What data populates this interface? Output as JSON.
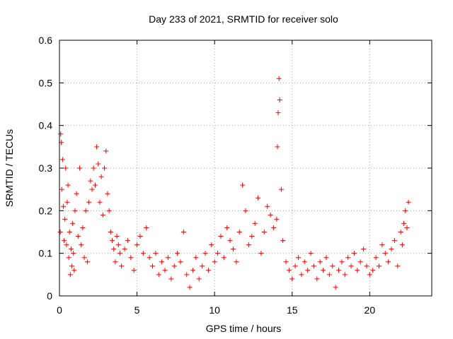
{
  "chart_data": {
    "type": "scatter",
    "title": "Day 233 of 2021, SRMTID for receiver solo",
    "xlabel": "GPS time / hours",
    "ylabel": "SRMTID / TECUs",
    "xlim": [
      0,
      24
    ],
    "ylim": [
      0,
      0.6
    ],
    "xticks": [
      0,
      5,
      10,
      15,
      20
    ],
    "yticks": [
      0,
      0.1,
      0.2,
      0.3,
      0.4,
      0.5,
      0.6
    ],
    "xtick_labels": [
      "0",
      "5",
      "10",
      "15",
      "20"
    ],
    "ytick_labels": [
      "0",
      "0.1",
      "0.2",
      "0.3",
      "0.4",
      "0.5",
      "0.6"
    ],
    "grid": true,
    "marker": "+",
    "color": "#ff0000",
    "series": [
      {
        "name": "SRMTID",
        "points": [
          [
            0.05,
            0.15
          ],
          [
            0.08,
            0.38
          ],
          [
            0.12,
            0.36
          ],
          [
            0.15,
            0.25
          ],
          [
            0.2,
            0.32
          ],
          [
            0.25,
            0.21
          ],
          [
            0.3,
            0.13
          ],
          [
            0.35,
            0.18
          ],
          [
            0.4,
            0.3
          ],
          [
            0.45,
            0.12
          ],
          [
            0.5,
            0.22
          ],
          [
            0.55,
            0.26
          ],
          [
            0.6,
            0.09
          ],
          [
            0.65,
            0.15
          ],
          [
            0.7,
            0.05
          ],
          [
            0.75,
            0.11
          ],
          [
            0.8,
            0.07
          ],
          [
            0.85,
            0.17
          ],
          [
            0.9,
            0.1
          ],
          [
            0.95,
            0.06
          ],
          [
            1.0,
            0.2
          ],
          [
            1.1,
            0.24
          ],
          [
            1.2,
            0.14
          ],
          [
            1.3,
            0.3
          ],
          [
            1.4,
            0.12
          ],
          [
            1.5,
            0.16
          ],
          [
            1.6,
            0.09
          ],
          [
            1.7,
            0.2
          ],
          [
            1.8,
            0.08
          ],
          [
            1.9,
            0.22
          ],
          [
            2.0,
            0.27
          ],
          [
            2.1,
            0.25
          ],
          [
            2.2,
            0.3
          ],
          [
            2.3,
            0.26
          ],
          [
            2.4,
            0.35
          ],
          [
            2.5,
            0.31
          ],
          [
            2.6,
            0.22
          ],
          [
            2.7,
            0.28
          ],
          [
            2.8,
            0.19
          ],
          [
            2.9,
            0.3
          ],
          [
            3.0,
            0.34
          ],
          [
            3.1,
            0.24
          ],
          [
            3.2,
            0.2
          ],
          [
            3.3,
            0.15
          ],
          [
            3.4,
            0.13
          ],
          [
            3.5,
            0.11
          ],
          [
            3.6,
            0.08
          ],
          [
            3.7,
            0.14
          ],
          [
            3.8,
            0.12
          ],
          [
            3.9,
            0.1
          ],
          [
            4.0,
            0.07
          ],
          [
            4.2,
            0.11
          ],
          [
            4.4,
            0.13
          ],
          [
            4.6,
            0.09
          ],
          [
            4.8,
            0.06
          ],
          [
            5.0,
            0.12
          ],
          [
            5.2,
            0.14
          ],
          [
            5.4,
            0.1
          ],
          [
            5.6,
            0.16
          ],
          [
            5.8,
            0.09
          ],
          [
            6.0,
            0.07
          ],
          [
            6.2,
            0.1
          ],
          [
            6.4,
            0.05
          ],
          [
            6.6,
            0.08
          ],
          [
            6.8,
            0.06
          ],
          [
            7.0,
            0.09
          ],
          [
            7.2,
            0.04
          ],
          [
            7.4,
            0.07
          ],
          [
            7.6,
            0.1
          ],
          [
            7.8,
            0.08
          ],
          [
            8.0,
            0.15
          ],
          [
            8.2,
            0.05
          ],
          [
            8.4,
            0.02
          ],
          [
            8.6,
            0.06
          ],
          [
            8.8,
            0.09
          ],
          [
            9.0,
            0.04
          ],
          [
            9.2,
            0.07
          ],
          [
            9.4,
            0.1
          ],
          [
            9.6,
            0.06
          ],
          [
            9.8,
            0.12
          ],
          [
            10.0,
            0.08
          ],
          [
            10.2,
            0.1
          ],
          [
            10.4,
            0.14
          ],
          [
            10.6,
            0.09
          ],
          [
            10.8,
            0.16
          ],
          [
            11.0,
            0.13
          ],
          [
            11.2,
            0.11
          ],
          [
            11.4,
            0.08
          ],
          [
            11.6,
            0.15
          ],
          [
            11.8,
            0.26
          ],
          [
            12.0,
            0.2
          ],
          [
            12.2,
            0.12
          ],
          [
            12.4,
            0.14
          ],
          [
            12.6,
            0.17
          ],
          [
            12.8,
            0.23
          ],
          [
            13.0,
            0.1
          ],
          [
            13.2,
            0.15
          ],
          [
            13.4,
            0.21
          ],
          [
            13.6,
            0.19
          ],
          [
            13.8,
            0.16
          ],
          [
            14.0,
            0.18
          ],
          [
            14.05,
            0.35
          ],
          [
            14.1,
            0.43
          ],
          [
            14.15,
            0.51
          ],
          [
            14.2,
            0.46
          ],
          [
            14.3,
            0.25
          ],
          [
            14.4,
            0.13
          ],
          [
            14.6,
            0.08
          ],
          [
            14.8,
            0.06
          ],
          [
            15.0,
            0.04
          ],
          [
            15.2,
            0.07
          ],
          [
            15.4,
            0.09
          ],
          [
            15.6,
            0.05
          ],
          [
            15.8,
            0.08
          ],
          [
            16.0,
            0.06
          ],
          [
            16.2,
            0.1
          ],
          [
            16.4,
            0.07
          ],
          [
            16.6,
            0.04
          ],
          [
            16.8,
            0.08
          ],
          [
            17.0,
            0.06
          ],
          [
            17.2,
            0.09
          ],
          [
            17.4,
            0.05
          ],
          [
            17.6,
            0.07
          ],
          [
            17.8,
            0.02
          ],
          [
            18.0,
            0.06
          ],
          [
            18.2,
            0.08
          ],
          [
            18.4,
            0.05
          ],
          [
            18.6,
            0.09
          ],
          [
            18.8,
            0.07
          ],
          [
            19.0,
            0.1
          ],
          [
            19.2,
            0.06
          ],
          [
            19.4,
            0.08
          ],
          [
            19.6,
            0.11
          ],
          [
            19.8,
            0.07
          ],
          [
            20.0,
            0.05
          ],
          [
            20.2,
            0.06
          ],
          [
            20.4,
            0.09
          ],
          [
            20.6,
            0.07
          ],
          [
            20.8,
            0.12
          ],
          [
            21.0,
            0.1
          ],
          [
            21.2,
            0.08
          ],
          [
            21.4,
            0.11
          ],
          [
            21.6,
            0.13
          ],
          [
            21.8,
            0.07
          ],
          [
            22.0,
            0.15
          ],
          [
            22.1,
            0.12
          ],
          [
            22.2,
            0.17
          ],
          [
            22.3,
            0.2
          ],
          [
            22.4,
            0.16
          ],
          [
            22.5,
            0.22
          ]
        ]
      }
    ]
  }
}
